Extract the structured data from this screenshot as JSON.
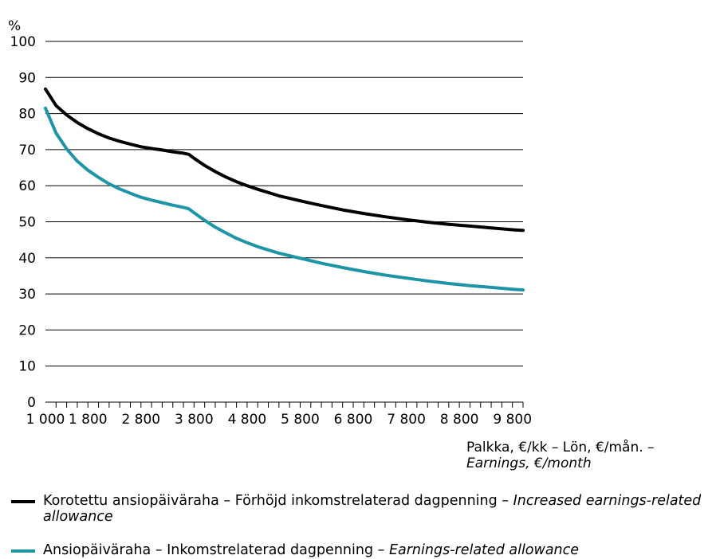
{
  "chart_data": {
    "type": "line",
    "y_unit_label": "%",
    "ylim": [
      0,
      100
    ],
    "yticks": [
      0,
      10,
      20,
      30,
      40,
      50,
      60,
      70,
      80,
      90,
      100
    ],
    "xlim": [
      1000,
      10000
    ],
    "xtick_labels": [
      "1 000",
      "1 800",
      "2 800",
      "3 800",
      "4 800",
      "5 800",
      "6 800",
      "7 800",
      "8 800",
      "9 800"
    ],
    "xtick_values": [
      1000,
      1800,
      2800,
      3800,
      4800,
      5800,
      6800,
      7800,
      8800,
      9800
    ],
    "minor_tick_step": 200,
    "grid": "horizontal",
    "xlabel": {
      "line1": "Palkka, €/kk – Lön, €/mån. –",
      "line2": "Earnings, €/month"
    },
    "series": [
      {
        "name": "Korotettu ansiopäiväraha – Förhöjd inkomstrelaterad dagpenning – Increased earnings-related allowance",
        "legend_plain": "Korotettu ansiopäiväraha – Förhöjd inkomstrelaterad dagpenning – ",
        "legend_italic": "Increased earnings-related allowance",
        "color": "#000000",
        "x": [
          1000,
          1200,
          1400,
          1600,
          1800,
          2000,
          2200,
          2400,
          2600,
          2800,
          3000,
          3200,
          3400,
          3600,
          3700,
          3800,
          4000,
          4200,
          4400,
          4600,
          4800,
          5000,
          5400,
          5800,
          6200,
          6600,
          7000,
          7400,
          7800,
          8200,
          8600,
          9000,
          9400,
          9800,
          10000
        ],
        "values": [
          86.8,
          82.2,
          79.6,
          77.5,
          75.8,
          74.4,
          73.2,
          72.3,
          71.5,
          70.8,
          70.3,
          69.9,
          69.4,
          69.0,
          68.7,
          67.6,
          65.6,
          63.9,
          62.4,
          61.1,
          60.0,
          59.0,
          57.2,
          55.8,
          54.5,
          53.3,
          52.3,
          51.4,
          50.6,
          49.9,
          49.3,
          48.8,
          48.3,
          47.8,
          47.6
        ]
      },
      {
        "name": "Ansiopäiväraha – Inkomstrelaterad dagpenning – Earnings-related allowance",
        "legend_plain": "Ansiopäiväraha – Inkomstrelaterad dagpenning – ",
        "legend_italic": "Earnings-related allowance",
        "color": "#1e95a6",
        "x": [
          1000,
          1200,
          1400,
          1600,
          1800,
          2000,
          2200,
          2400,
          2600,
          2800,
          3000,
          3200,
          3400,
          3600,
          3700,
          3800,
          4000,
          4200,
          4400,
          4600,
          4800,
          5000,
          5400,
          5800,
          6200,
          6600,
          7000,
          7400,
          7800,
          8200,
          8600,
          9000,
          9400,
          9800,
          10000
        ],
        "values": [
          81.5,
          74.6,
          70.2,
          66.8,
          64.3,
          62.3,
          60.5,
          59.1,
          57.9,
          56.8,
          56.0,
          55.3,
          54.6,
          54.0,
          53.6,
          52.5,
          50.4,
          48.5,
          46.9,
          45.4,
          44.2,
          43.1,
          41.3,
          39.9,
          38.5,
          37.3,
          36.2,
          35.2,
          34.4,
          33.6,
          32.9,
          32.3,
          31.8,
          31.3,
          31.1
        ]
      }
    ]
  }
}
